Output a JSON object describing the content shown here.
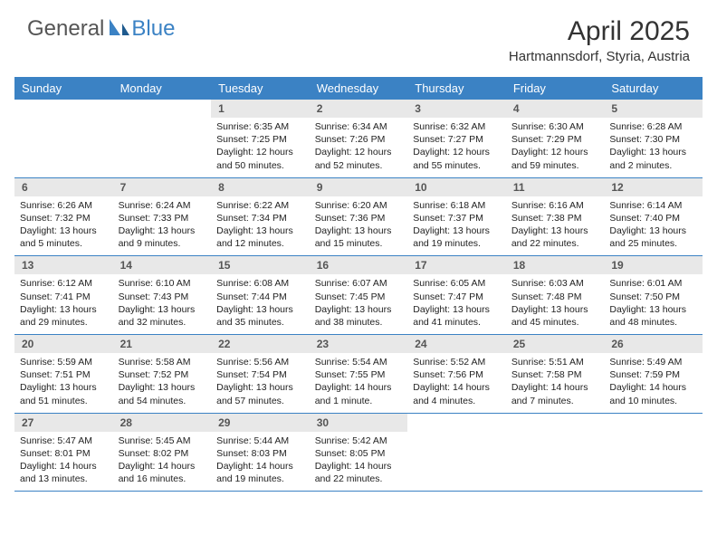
{
  "brand": {
    "part1": "General",
    "part2": "Blue"
  },
  "title": "April 2025",
  "location": "Hartmannsdorf, Styria, Austria",
  "colors": {
    "header_blue": "#3b82c4",
    "daynum_bg": "#e8e8e8",
    "text": "#222222",
    "bg": "#ffffff"
  },
  "daynames": [
    "Sunday",
    "Monday",
    "Tuesday",
    "Wednesday",
    "Thursday",
    "Friday",
    "Saturday"
  ],
  "weeks": [
    [
      {
        "n": "",
        "sr": "",
        "ss": "",
        "dl": ""
      },
      {
        "n": "",
        "sr": "",
        "ss": "",
        "dl": ""
      },
      {
        "n": "1",
        "sr": "Sunrise: 6:35 AM",
        "ss": "Sunset: 7:25 PM",
        "dl": "Daylight: 12 hours and 50 minutes."
      },
      {
        "n": "2",
        "sr": "Sunrise: 6:34 AM",
        "ss": "Sunset: 7:26 PM",
        "dl": "Daylight: 12 hours and 52 minutes."
      },
      {
        "n": "3",
        "sr": "Sunrise: 6:32 AM",
        "ss": "Sunset: 7:27 PM",
        "dl": "Daylight: 12 hours and 55 minutes."
      },
      {
        "n": "4",
        "sr": "Sunrise: 6:30 AM",
        "ss": "Sunset: 7:29 PM",
        "dl": "Daylight: 12 hours and 59 minutes."
      },
      {
        "n": "5",
        "sr": "Sunrise: 6:28 AM",
        "ss": "Sunset: 7:30 PM",
        "dl": "Daylight: 13 hours and 2 minutes."
      }
    ],
    [
      {
        "n": "6",
        "sr": "Sunrise: 6:26 AM",
        "ss": "Sunset: 7:32 PM",
        "dl": "Daylight: 13 hours and 5 minutes."
      },
      {
        "n": "7",
        "sr": "Sunrise: 6:24 AM",
        "ss": "Sunset: 7:33 PM",
        "dl": "Daylight: 13 hours and 9 minutes."
      },
      {
        "n": "8",
        "sr": "Sunrise: 6:22 AM",
        "ss": "Sunset: 7:34 PM",
        "dl": "Daylight: 13 hours and 12 minutes."
      },
      {
        "n": "9",
        "sr": "Sunrise: 6:20 AM",
        "ss": "Sunset: 7:36 PM",
        "dl": "Daylight: 13 hours and 15 minutes."
      },
      {
        "n": "10",
        "sr": "Sunrise: 6:18 AM",
        "ss": "Sunset: 7:37 PM",
        "dl": "Daylight: 13 hours and 19 minutes."
      },
      {
        "n": "11",
        "sr": "Sunrise: 6:16 AM",
        "ss": "Sunset: 7:38 PM",
        "dl": "Daylight: 13 hours and 22 minutes."
      },
      {
        "n": "12",
        "sr": "Sunrise: 6:14 AM",
        "ss": "Sunset: 7:40 PM",
        "dl": "Daylight: 13 hours and 25 minutes."
      }
    ],
    [
      {
        "n": "13",
        "sr": "Sunrise: 6:12 AM",
        "ss": "Sunset: 7:41 PM",
        "dl": "Daylight: 13 hours and 29 minutes."
      },
      {
        "n": "14",
        "sr": "Sunrise: 6:10 AM",
        "ss": "Sunset: 7:43 PM",
        "dl": "Daylight: 13 hours and 32 minutes."
      },
      {
        "n": "15",
        "sr": "Sunrise: 6:08 AM",
        "ss": "Sunset: 7:44 PM",
        "dl": "Daylight: 13 hours and 35 minutes."
      },
      {
        "n": "16",
        "sr": "Sunrise: 6:07 AM",
        "ss": "Sunset: 7:45 PM",
        "dl": "Daylight: 13 hours and 38 minutes."
      },
      {
        "n": "17",
        "sr": "Sunrise: 6:05 AM",
        "ss": "Sunset: 7:47 PM",
        "dl": "Daylight: 13 hours and 41 minutes."
      },
      {
        "n": "18",
        "sr": "Sunrise: 6:03 AM",
        "ss": "Sunset: 7:48 PM",
        "dl": "Daylight: 13 hours and 45 minutes."
      },
      {
        "n": "19",
        "sr": "Sunrise: 6:01 AM",
        "ss": "Sunset: 7:50 PM",
        "dl": "Daylight: 13 hours and 48 minutes."
      }
    ],
    [
      {
        "n": "20",
        "sr": "Sunrise: 5:59 AM",
        "ss": "Sunset: 7:51 PM",
        "dl": "Daylight: 13 hours and 51 minutes."
      },
      {
        "n": "21",
        "sr": "Sunrise: 5:58 AM",
        "ss": "Sunset: 7:52 PM",
        "dl": "Daylight: 13 hours and 54 minutes."
      },
      {
        "n": "22",
        "sr": "Sunrise: 5:56 AM",
        "ss": "Sunset: 7:54 PM",
        "dl": "Daylight: 13 hours and 57 minutes."
      },
      {
        "n": "23",
        "sr": "Sunrise: 5:54 AM",
        "ss": "Sunset: 7:55 PM",
        "dl": "Daylight: 14 hours and 1 minute."
      },
      {
        "n": "24",
        "sr": "Sunrise: 5:52 AM",
        "ss": "Sunset: 7:56 PM",
        "dl": "Daylight: 14 hours and 4 minutes."
      },
      {
        "n": "25",
        "sr": "Sunrise: 5:51 AM",
        "ss": "Sunset: 7:58 PM",
        "dl": "Daylight: 14 hours and 7 minutes."
      },
      {
        "n": "26",
        "sr": "Sunrise: 5:49 AM",
        "ss": "Sunset: 7:59 PM",
        "dl": "Daylight: 14 hours and 10 minutes."
      }
    ],
    [
      {
        "n": "27",
        "sr": "Sunrise: 5:47 AM",
        "ss": "Sunset: 8:01 PM",
        "dl": "Daylight: 14 hours and 13 minutes."
      },
      {
        "n": "28",
        "sr": "Sunrise: 5:45 AM",
        "ss": "Sunset: 8:02 PM",
        "dl": "Daylight: 14 hours and 16 minutes."
      },
      {
        "n": "29",
        "sr": "Sunrise: 5:44 AM",
        "ss": "Sunset: 8:03 PM",
        "dl": "Daylight: 14 hours and 19 minutes."
      },
      {
        "n": "30",
        "sr": "Sunrise: 5:42 AM",
        "ss": "Sunset: 8:05 PM",
        "dl": "Daylight: 14 hours and 22 minutes."
      },
      {
        "n": "",
        "sr": "",
        "ss": "",
        "dl": ""
      },
      {
        "n": "",
        "sr": "",
        "ss": "",
        "dl": ""
      },
      {
        "n": "",
        "sr": "",
        "ss": "",
        "dl": ""
      }
    ]
  ]
}
